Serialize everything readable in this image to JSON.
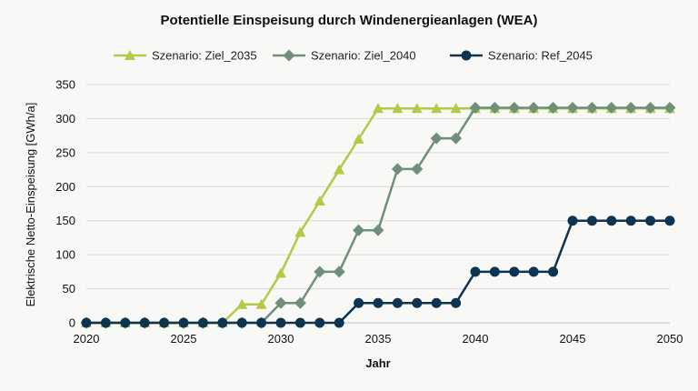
{
  "chart_data": {
    "type": "line",
    "title": "Potentielle Einspeisung durch Windenergieanlagen (WEA)",
    "xlabel": "Jahr",
    "ylabel": "Elektrische Netto-Einspeisung [GWh/a]",
    "xlim": [
      2020,
      2050
    ],
    "ylim": [
      0,
      350
    ],
    "x_ticks": [
      "2020",
      "2025",
      "2030",
      "2035",
      "2040",
      "2045",
      "2050"
    ],
    "y_ticks": [
      "0",
      "50",
      "100",
      "150",
      "200",
      "250",
      "300",
      "350"
    ],
    "grid": "horizontal",
    "legend_position": "top",
    "x": [
      2020,
      2021,
      2022,
      2023,
      2024,
      2025,
      2026,
      2027,
      2028,
      2029,
      2030,
      2031,
      2032,
      2033,
      2034,
      2035,
      2036,
      2037,
      2038,
      2039,
      2040,
      2041,
      2042,
      2043,
      2044,
      2045,
      2046,
      2047,
      2048,
      2049,
      2050
    ],
    "series": [
      {
        "name": "Szenario: Ziel_2035",
        "color": "#b5c947",
        "marker": "triangle",
        "values": [
          0,
          0,
          0,
          0,
          0,
          0,
          0,
          0,
          27,
          27,
          73,
          133,
          179,
          225,
          270,
          315,
          315,
          315,
          315,
          315,
          315,
          315,
          315,
          315,
          315,
          315,
          315,
          315,
          315,
          315,
          315
        ]
      },
      {
        "name": "Szenario: Ziel_2040",
        "color": "#6f8f7a",
        "marker": "diamond",
        "values": [
          0,
          0,
          0,
          0,
          0,
          0,
          0,
          0,
          0,
          0,
          29,
          29,
          75,
          75,
          136,
          136,
          226,
          226,
          271,
          271,
          316,
          316,
          316,
          316,
          316,
          316,
          316,
          316,
          316,
          316,
          316
        ]
      },
      {
        "name": "Szenario: Ref_2045",
        "color": "#0e3451",
        "marker": "circle",
        "values": [
          0,
          0,
          0,
          0,
          0,
          0,
          0,
          0,
          0,
          0,
          0,
          0,
          0,
          0,
          29,
          29,
          29,
          29,
          29,
          29,
          75,
          75,
          75,
          75,
          75,
          150,
          150,
          150,
          150,
          150,
          150
        ]
      }
    ]
  }
}
